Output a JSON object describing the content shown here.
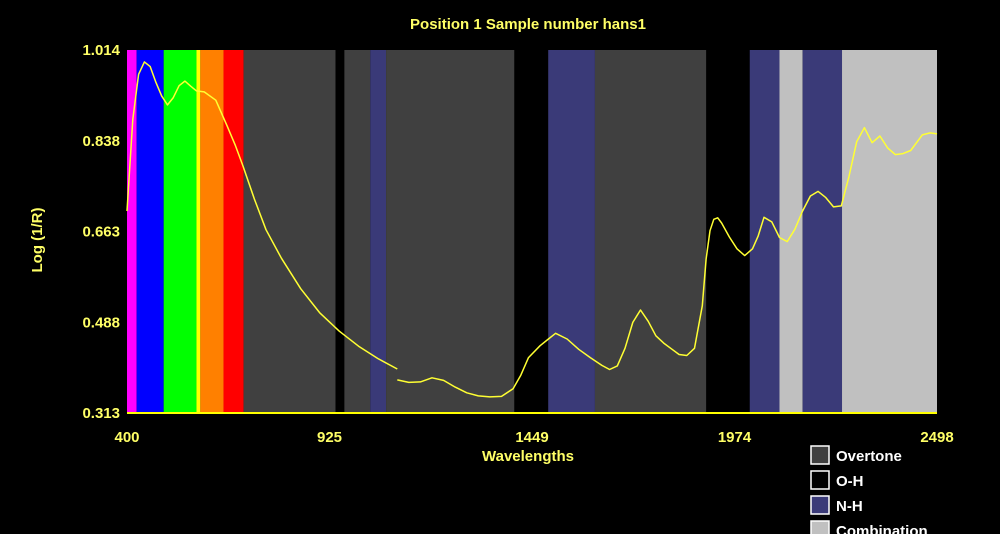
{
  "chart_data": {
    "type": "line",
    "title": "Position 1  Sample number hans1",
    "xlabel": "Wavelengths",
    "ylabel": "Log (1/R)",
    "xlim": [
      400,
      2498
    ],
    "ylim": [
      0.313,
      1.014
    ],
    "xticks": [
      "400",
      "925",
      "1449",
      "1974",
      "2498"
    ],
    "yticks": [
      "1.014",
      "0.838",
      "0.663",
      "0.488",
      "0.313"
    ],
    "colors": {
      "axis": "#ffff00",
      "text": "#ffff66",
      "line": "#ffff33",
      "background": "#000000"
    },
    "bands": [
      {
        "x0": 400,
        "x1": 425,
        "color": "#ff00ff"
      },
      {
        "x0": 425,
        "x1": 495,
        "color": "#0000ff"
      },
      {
        "x0": 495,
        "x1": 580,
        "color": "#00ff00"
      },
      {
        "x0": 580,
        "x1": 590,
        "color": "#ffff00"
      },
      {
        "x0": 590,
        "x1": 650,
        "color": "#ff8000"
      },
      {
        "x0": 650,
        "x1": 702,
        "color": "#ff0000"
      },
      {
        "x0": 702,
        "x1": 940,
        "color": "#404040"
      },
      {
        "x0": 963,
        "x1": 1030,
        "color": "#404040"
      },
      {
        "x0": 1030,
        "x1": 1071,
        "color": "#3a3a78"
      },
      {
        "x0": 1071,
        "x1": 1403,
        "color": "#404040"
      },
      {
        "x0": 1491,
        "x1": 1612,
        "color": "#3a3a78"
      },
      {
        "x0": 1612,
        "x1": 1900,
        "color": "#404040"
      },
      {
        "x0": 2013,
        "x1": 2090,
        "color": "#3a3a78"
      },
      {
        "x0": 2090,
        "x1": 2150,
        "color": "#c0c0c0"
      },
      {
        "x0": 2150,
        "x1": 2252,
        "color": "#3a3a78"
      },
      {
        "x0": 2252,
        "x1": 2498,
        "color": "#c0c0c0"
      }
    ],
    "series": [
      {
        "color": "#ffff33",
        "segments": [
          {
            "x": [
              400,
              415,
              430,
              445,
              460,
              475,
              490,
              505,
              520,
              535,
              550,
              565,
              580,
              600,
              630,
              660,
              680,
              700,
              730,
              760,
              800,
              850,
              900,
              950,
              1000,
              1050,
              1100
            ],
            "y": [
              0.703,
              0.88,
              0.967,
              0.991,
              0.982,
              0.951,
              0.925,
              0.908,
              0.922,
              0.945,
              0.954,
              0.944,
              0.935,
              0.933,
              0.917,
              0.866,
              0.831,
              0.791,
              0.726,
              0.667,
              0.612,
              0.553,
              0.506,
              0.471,
              0.442,
              0.418,
              0.398
            ]
          },
          {
            "x": [
              1100,
              1130,
              1160,
              1190,
              1220,
              1250,
              1280,
              1310,
              1340,
              1370,
              1400,
              1420,
              1440,
              1470,
              1490,
              1510,
              1540,
              1570,
              1600,
              1630,
              1650,
              1670,
              1690,
              1710,
              1730,
              1750,
              1770,
              1790,
              1810,
              1830,
              1850,
              1870,
              1890,
              1900,
              1910,
              1920,
              1930,
              1940,
              1960,
              1980,
              2000,
              2020,
              2035,
              2050,
              2070,
              2090,
              2110,
              2130,
              2150,
              2170,
              2190,
              2210,
              2230,
              2250,
              2270,
              2290,
              2310,
              2330,
              2350,
              2370,
              2390,
              2410,
              2430,
              2460,
              2480,
              2498
            ],
            "y": [
              0.377,
              0.372,
              0.373,
              0.381,
              0.376,
              0.363,
              0.352,
              0.346,
              0.344,
              0.345,
              0.36,
              0.386,
              0.42,
              0.443,
              0.455,
              0.467,
              0.456,
              0.436,
              0.42,
              0.405,
              0.397,
              0.404,
              0.438,
              0.488,
              0.512,
              0.49,
              0.462,
              0.448,
              0.437,
              0.426,
              0.424,
              0.438,
              0.52,
              0.61,
              0.665,
              0.687,
              0.69,
              0.68,
              0.653,
              0.63,
              0.617,
              0.63,
              0.655,
              0.691,
              0.682,
              0.652,
              0.644,
              0.668,
              0.703,
              0.732,
              0.741,
              0.729,
              0.711,
              0.713,
              0.77,
              0.837,
              0.864,
              0.835,
              0.848,
              0.825,
              0.812,
              0.814,
              0.82,
              0.85,
              0.854,
              0.852
            ]
          }
        ]
      }
    ],
    "legend": {
      "position": "bottom-right",
      "items": [
        {
          "label": "Overtone",
          "color": "#404040"
        },
        {
          "label": "O-H",
          "color": "#000000"
        },
        {
          "label": "N-H",
          "color": "#3a3a78"
        },
        {
          "label": "Combination",
          "color": "#c0c0c0"
        }
      ]
    }
  }
}
